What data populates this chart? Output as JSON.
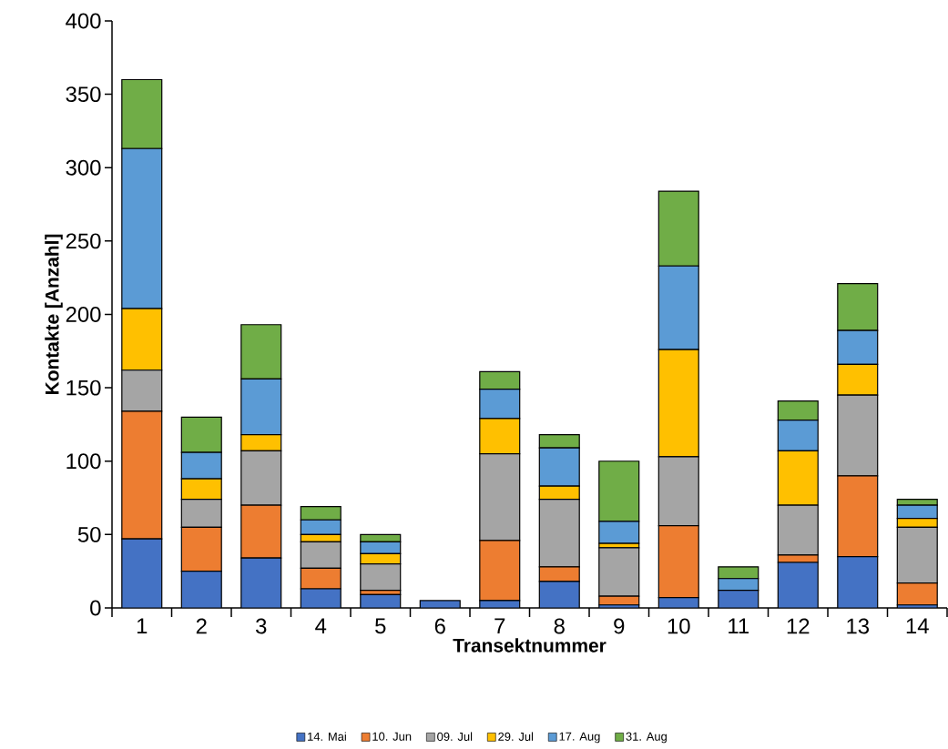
{
  "chart_data": {
    "type": "bar",
    "stacked": true,
    "xlabel": "Transektnummer",
    "ylabel": "Kontakte [Anzahl]",
    "categories": [
      "1",
      "2",
      "3",
      "4",
      "5",
      "6",
      "7",
      "8",
      "9",
      "10",
      "11",
      "12",
      "13",
      "14"
    ],
    "ylim": [
      0,
      400
    ],
    "yticks": [
      0,
      50,
      100,
      150,
      200,
      250,
      300,
      350,
      400
    ],
    "legend": "bottom",
    "series": [
      {
        "name": "14. Mai",
        "color": "#4472c4",
        "values": [
          47,
          25,
          34,
          13,
          9,
          5,
          5,
          18,
          2,
          7,
          12,
          31,
          35,
          2
        ]
      },
      {
        "name": "10. Jun",
        "color": "#ed7d31",
        "values": [
          87,
          30,
          36,
          14,
          3,
          0,
          41,
          10,
          6,
          49,
          0,
          5,
          55,
          15
        ]
      },
      {
        "name": "09. Jul",
        "color": "#a5a5a5",
        "values": [
          28,
          19,
          37,
          18,
          18,
          0,
          59,
          46,
          33,
          47,
          0,
          34,
          55,
          38
        ]
      },
      {
        "name": "29. Jul",
        "color": "#ffc000",
        "values": [
          42,
          14,
          11,
          5,
          7,
          0,
          24,
          9,
          3,
          73,
          0,
          37,
          21,
          6
        ]
      },
      {
        "name": "17. Aug",
        "color": "#5b9bd5",
        "values": [
          109,
          18,
          38,
          10,
          8,
          0,
          20,
          26,
          15,
          57,
          8,
          21,
          23,
          9
        ]
      },
      {
        "name": "31. Aug",
        "color": "#70ad47",
        "values": [
          47,
          24,
          37,
          9,
          5,
          0,
          12,
          9,
          41,
          51,
          8,
          13,
          32,
          4
        ]
      }
    ]
  }
}
